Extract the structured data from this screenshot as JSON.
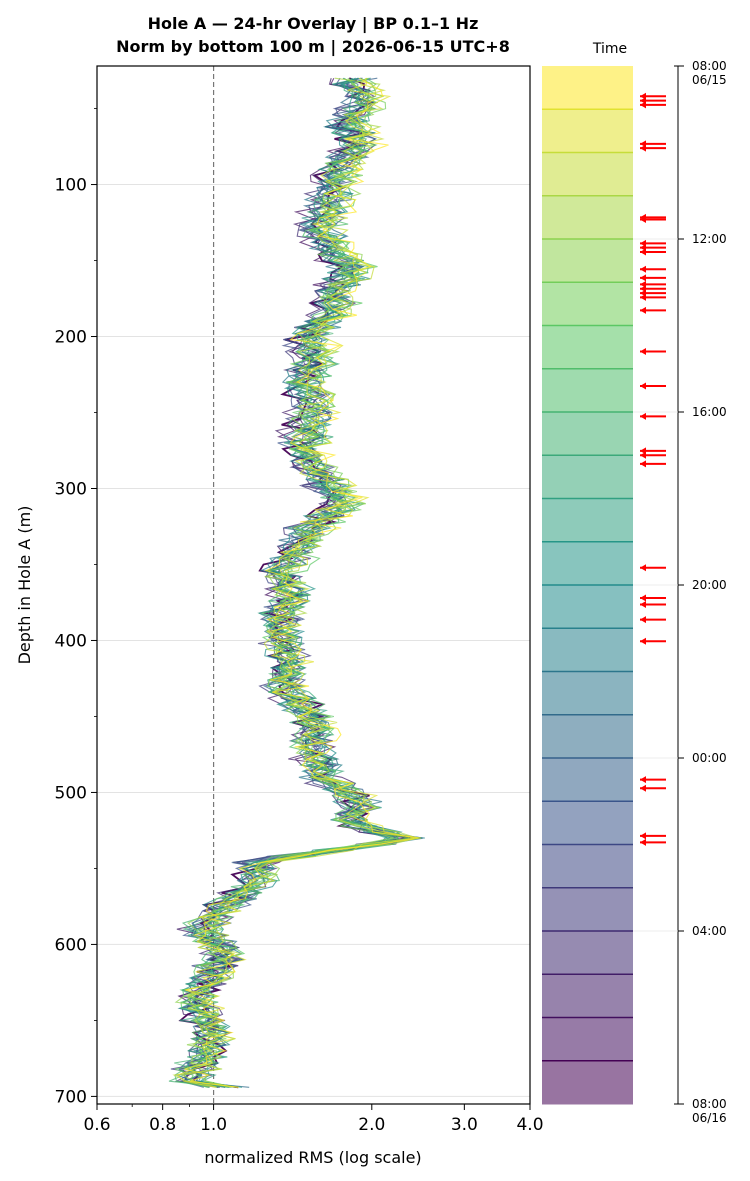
{
  "title_line1": "Hole A — 24-hr Overlay  |  BP 0.1–1 Hz",
  "title_line2": "Norm by bottom 100 m  |  2026-06-15 UTC+8",
  "time_panel_label": "Time",
  "chart_data": {
    "type": "line",
    "xlabel": "normalized RMS  (log scale)",
    "ylabel": "Depth in Hole A (m)",
    "xscale": "log",
    "xlim": [
      0.6,
      4.0
    ],
    "ylim": [
      705,
      22
    ],
    "x_ticks": [
      0.6,
      0.8,
      1.0,
      2.0,
      3.0,
      4.0
    ],
    "x_tick_labels": [
      "0.6",
      "0.8",
      "1.0",
      "2.0",
      "3.0",
      "4.0"
    ],
    "y_ticks": [
      100,
      200,
      300,
      400,
      500,
      600,
      700
    ],
    "y_tick_labels": [
      "100",
      "200",
      "300",
      "400",
      "500",
      "600",
      "700"
    ],
    "reference_line_x": 1.0,
    "grid": "horizontal",
    "n_series": 24,
    "colormap": [
      "#440154",
      "#3b528b",
      "#21918c",
      "#5ec962",
      "#fde725"
    ],
    "profile_depth": [
      30,
      45,
      60,
      75,
      85,
      100,
      115,
      130,
      145,
      155,
      170,
      185,
      200,
      215,
      230,
      250,
      265,
      280,
      300,
      310,
      325,
      340,
      355,
      370,
      385,
      400,
      415,
      430,
      450,
      470,
      490,
      505,
      520,
      530,
      545,
      560,
      575,
      590,
      605,
      620,
      635,
      645,
      660,
      675,
      690,
      695
    ],
    "profile_rms_median": [
      1.85,
      1.95,
      1.8,
      1.9,
      1.75,
      1.7,
      1.65,
      1.6,
      1.7,
      1.85,
      1.7,
      1.7,
      1.5,
      1.55,
      1.5,
      1.55,
      1.5,
      1.5,
      1.7,
      1.75,
      1.55,
      1.45,
      1.35,
      1.4,
      1.35,
      1.35,
      1.4,
      1.35,
      1.55,
      1.55,
      1.6,
      1.9,
      1.8,
      2.3,
      1.2,
      1.2,
      1.05,
      0.95,
      1.05,
      1.0,
      0.92,
      0.95,
      1.0,
      0.95,
      0.9,
      1.1
    ],
    "time_axis": {
      "start": "08:00 06/15",
      "end": "08:00 06/16",
      "tick_labels": [
        [
          "08:00",
          "06/15"
        ],
        [
          "12:00"
        ],
        [
          "16:00"
        ],
        [
          "20:00"
        ],
        [
          "00:00"
        ],
        [
          "04:00"
        ],
        [
          "08:00",
          "06/16"
        ]
      ],
      "tick_hours": [
        0,
        4,
        8,
        12,
        16,
        20,
        24
      ],
      "n_bands": 24,
      "band_colors": [
        "#fde725",
        "#dde318",
        "#bade28",
        "#95d840",
        "#75d054",
        "#56c667",
        "#3dbc74",
        "#29af7f",
        "#20a386",
        "#1f968b",
        "#238a8d",
        "#287d8e",
        "#2d718e",
        "#33638d",
        "#39558c",
        "#404688",
        "#453781",
        "#482878",
        "#481467",
        "#440154",
        "#440154",
        "#440154",
        "#440154",
        "#440154"
      ],
      "event_arrow_hours": [
        0.7,
        0.8,
        0.9,
        1.8,
        1.9,
        3.5,
        3.55,
        4.1,
        4.2,
        4.3,
        4.7,
        4.9,
        5.05,
        5.15,
        5.25,
        5.35,
        5.65,
        6.6,
        7.4,
        8.1,
        8.9,
        9.0,
        9.2,
        11.6,
        12.3,
        12.45,
        12.8,
        13.3,
        16.5,
        16.7,
        17.8,
        17.95
      ]
    }
  }
}
